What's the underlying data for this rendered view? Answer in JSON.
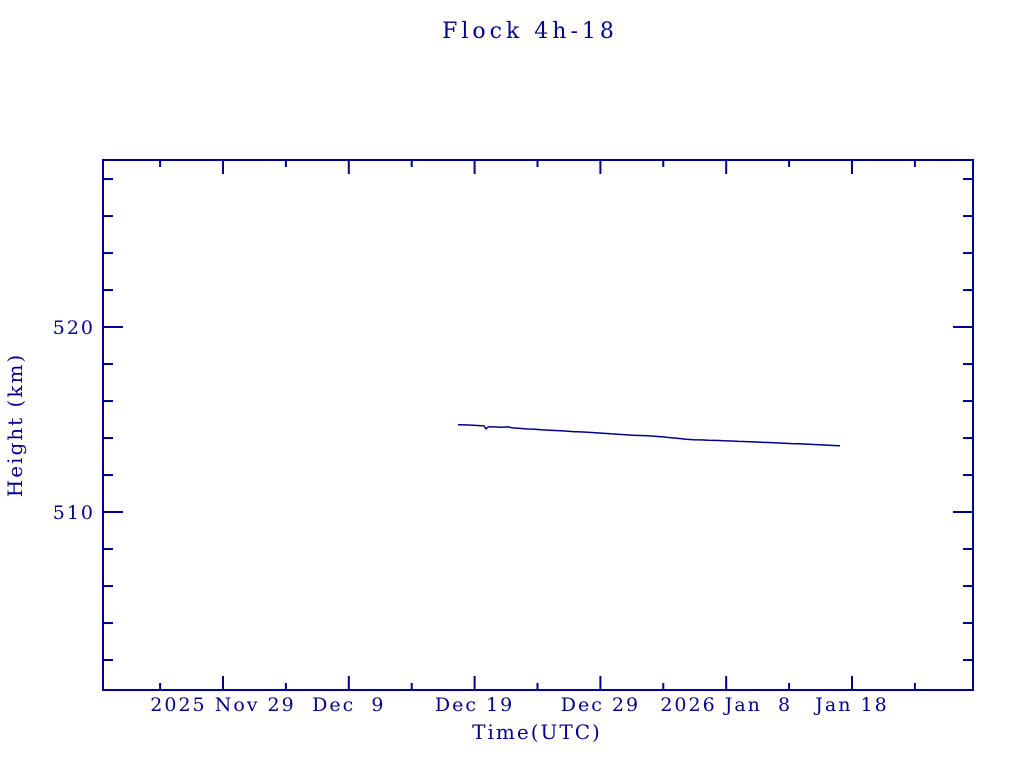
{
  "page": {
    "background": "#ffffff"
  },
  "chart_data": {
    "type": "line",
    "title": "Flock 4h-18",
    "xlabel": "Time(UTC)",
    "ylabel": "Height (km)",
    "ink_color": "#00008b",
    "line_color": "#00008b",
    "background_color": "#ffffff",
    "grid": false,
    "legend": false,
    "x_unit": "days since 2025 Nov 29 00:00 UTC",
    "xlim": [
      -9.54,
      59.62
    ],
    "ylim": [
      500.38,
      529.03
    ],
    "x_ticks_major": [
      {
        "x": 0,
        "label": "2025 Nov 29"
      },
      {
        "x": 10,
        "label": "Dec  9"
      },
      {
        "x": 20,
        "label": "Dec 19"
      },
      {
        "x": 30,
        "label": "Dec 29"
      },
      {
        "x": 40,
        "label": "2026 Jan  8"
      },
      {
        "x": 50,
        "label": "Jan 18"
      }
    ],
    "x_ticks_minor": [
      -5,
      5,
      15,
      25,
      35,
      45,
      55
    ],
    "y_ticks_major": [
      {
        "y": 510,
        "label": "510"
      },
      {
        "y": 520,
        "label": "520"
      }
    ],
    "y_ticks_minor": [
      502,
      504,
      506,
      508,
      512,
      514,
      516,
      518,
      522,
      524,
      526,
      528
    ],
    "series": [
      {
        "name": "Flock 4h-18 height",
        "start_date": "2025 Dec 17 (approx)",
        "end_date": "2026 Jan 17 (approx)",
        "points": [
          [
            18.68,
            514.72
          ],
          [
            19.3,
            514.71
          ],
          [
            19.9,
            514.69
          ],
          [
            20.4,
            514.67
          ],
          [
            20.75,
            514.66
          ],
          [
            20.9,
            514.5
          ],
          [
            21.1,
            514.6
          ],
          [
            21.6,
            514.6
          ],
          [
            22.1,
            514.58
          ],
          [
            22.66,
            514.6
          ],
          [
            23.0,
            514.55
          ],
          [
            23.6,
            514.52
          ],
          [
            24.2,
            514.49
          ],
          [
            24.8,
            514.47
          ],
          [
            25.4,
            514.44
          ],
          [
            26.0,
            514.42
          ],
          [
            26.6,
            514.4
          ],
          [
            27.2,
            514.38
          ],
          [
            27.8,
            514.35
          ],
          [
            28.4,
            514.33
          ],
          [
            29.0,
            514.31
          ],
          [
            29.6,
            514.29
          ],
          [
            30.2,
            514.26
          ],
          [
            30.8,
            514.23
          ],
          [
            31.4,
            514.21
          ],
          [
            32.0,
            514.18
          ],
          [
            32.6,
            514.15
          ],
          [
            33.2,
            514.14
          ],
          [
            33.8,
            514.12
          ],
          [
            34.4,
            514.09
          ],
          [
            35.0,
            514.06
          ],
          [
            35.6,
            514.02
          ],
          [
            36.2,
            513.98
          ],
          [
            36.8,
            513.94
          ],
          [
            37.4,
            513.91
          ],
          [
            38.0,
            513.9
          ],
          [
            38.6,
            513.88
          ],
          [
            39.2,
            513.87
          ],
          [
            39.8,
            513.85
          ],
          [
            40.4,
            513.84
          ],
          [
            41.0,
            513.82
          ],
          [
            41.6,
            513.81
          ],
          [
            42.2,
            513.79
          ],
          [
            42.8,
            513.77
          ],
          [
            43.4,
            513.76
          ],
          [
            44.0,
            513.74
          ],
          [
            44.6,
            513.72
          ],
          [
            45.2,
            513.7
          ],
          [
            45.8,
            513.69
          ],
          [
            46.4,
            513.67
          ],
          [
            47.0,
            513.65
          ],
          [
            47.6,
            513.63
          ],
          [
            48.2,
            513.61
          ],
          [
            48.7,
            513.59
          ],
          [
            49.05,
            513.58
          ]
        ]
      }
    ]
  }
}
